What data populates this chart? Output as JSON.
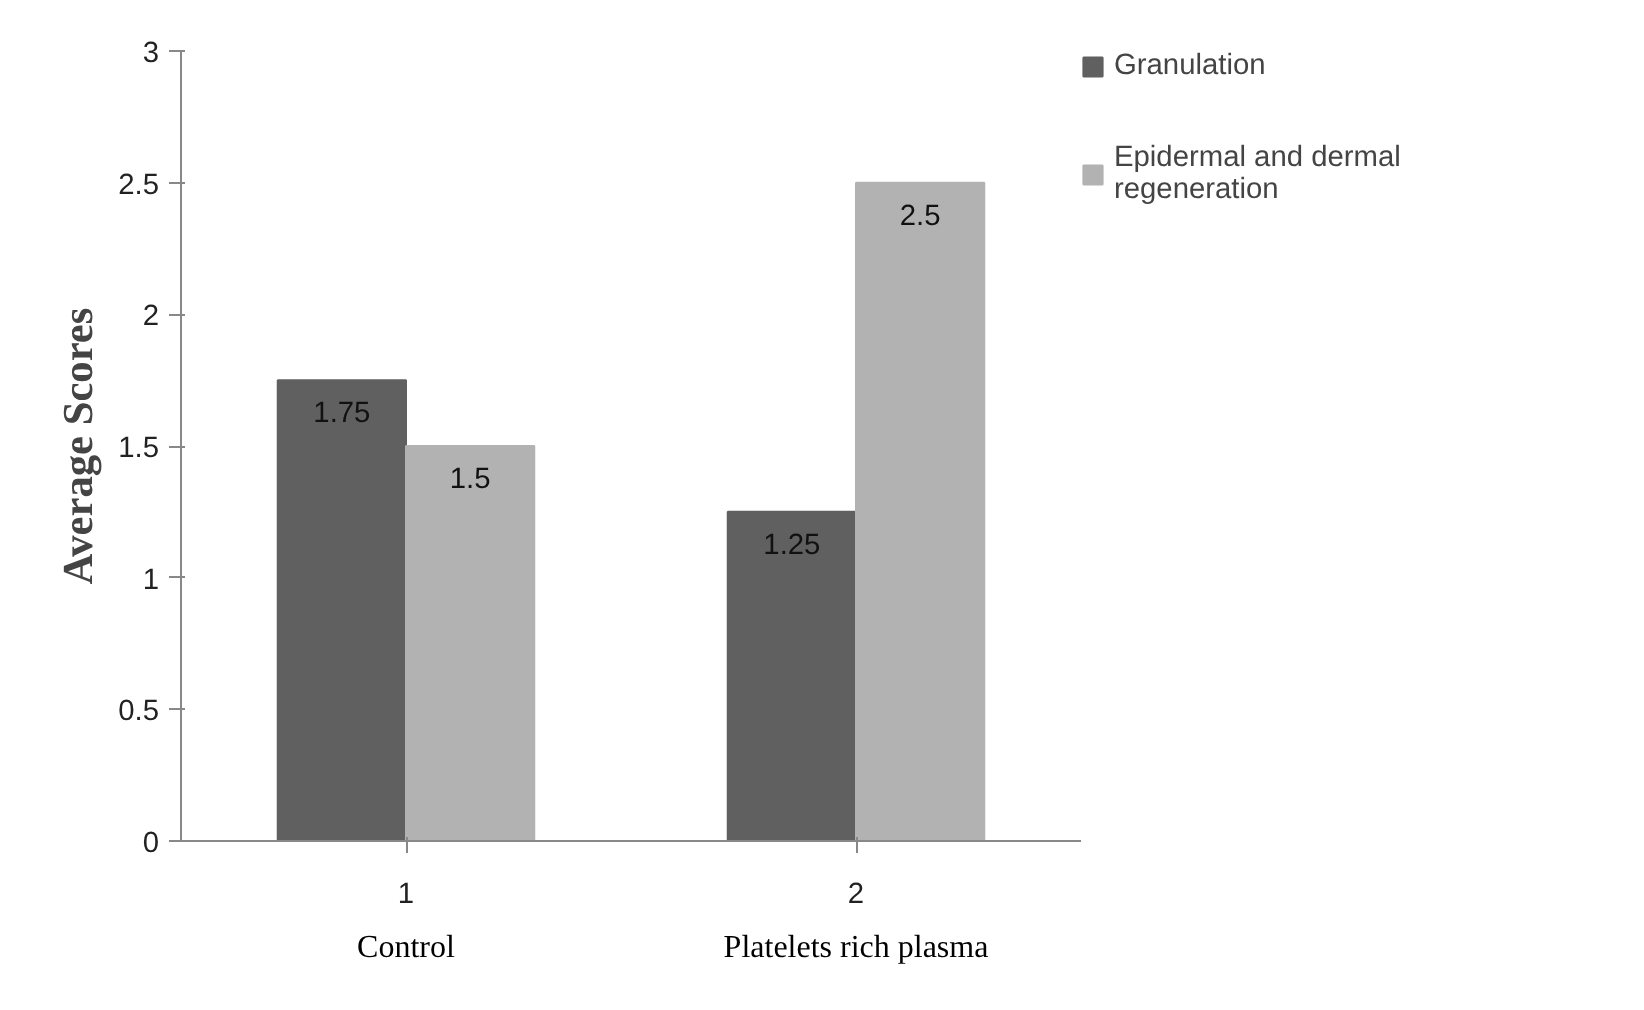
{
  "chart_data": {
    "type": "bar",
    "categories": [
      "1",
      "2"
    ],
    "series": [
      {
        "name": "Granulation",
        "color": "#606060",
        "values": [
          1.75,
          1.25
        ]
      },
      {
        "name": "Epidermal and dermal regeneration",
        "color": "#b2b2b2",
        "values": [
          1.5,
          2.5
        ]
      }
    ],
    "ylabel": "Average Scores",
    "ylim": [
      0,
      3
    ],
    "yticks": [
      0,
      {
        "value": 0.5,
        "label": "0.5"
      },
      1,
      {
        "value": 1.5,
        "label": "1.5"
      },
      2,
      {
        "value": 2.5,
        "label": "2.5"
      },
      3
    ],
    "annotations": [
      "Control",
      "Platelets rich plasma"
    ],
    "data_labels": true,
    "grid": false,
    "legend": "right"
  }
}
